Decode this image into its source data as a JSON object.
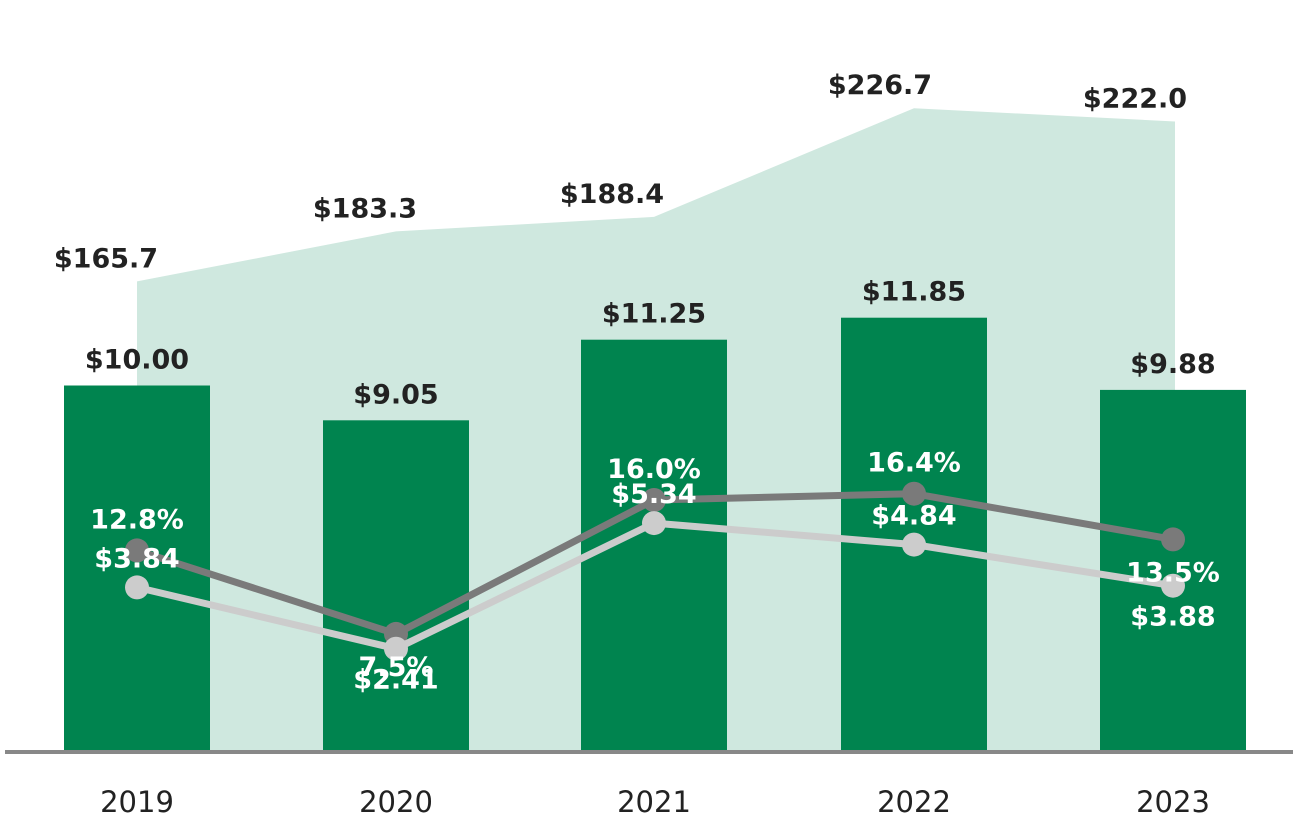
{
  "chart_data": {
    "type": "bar",
    "title": "",
    "xlabel": "",
    "ylabel": "",
    "categories": [
      "2019",
      "2020",
      "2021",
      "2022",
      "2023"
    ],
    "colors": {
      "bar": "#00844f",
      "area": "#cfe8df",
      "line_pct": "#7a7a7a",
      "line_small": "#cccccc",
      "axis": "#888888"
    },
    "series": [
      {
        "name": "area",
        "type": "area",
        "values": [
          165.7,
          183.3,
          188.4,
          226.7,
          222.0
        ],
        "labels": [
          "$165.7",
          "$183.3",
          "$188.4",
          "$226.7",
          "$222.0"
        ],
        "ylim": [
          0,
          250
        ]
      },
      {
        "name": "bars",
        "type": "bar",
        "values": [
          10.0,
          9.05,
          11.25,
          11.85,
          9.88
        ],
        "labels": [
          "$10.00",
          "$9.05",
          "$11.25",
          "$11.85",
          "$9.88"
        ],
        "ylim": [
          0,
          20
        ]
      },
      {
        "name": "percent",
        "type": "line",
        "values": [
          12.8,
          7.5,
          16.0,
          16.4,
          13.5
        ],
        "labels": [
          "12.8%",
          "7.5%",
          "16.0%",
          "16.4%",
          "13.5%"
        ],
        "ylim": [
          0,
          40
        ]
      },
      {
        "name": "small",
        "type": "line",
        "values": [
          3.84,
          2.41,
          5.34,
          4.84,
          3.88
        ],
        "labels": [
          "$3.84",
          "$2.41",
          "$5.34",
          "$4.84",
          "$3.88"
        ],
        "ylim": [
          0,
          14
        ]
      }
    ]
  }
}
